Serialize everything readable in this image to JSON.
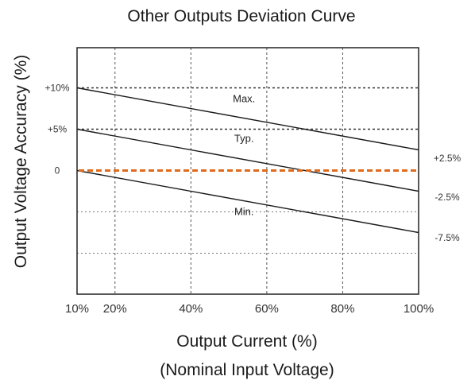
{
  "chart_data": {
    "type": "line",
    "title": "Other Outputs Deviation Curve",
    "xlabel": "Output Current (%)",
    "xlabel_sub": "(Nominal Input Voltage)",
    "ylabel": "Output Voltage Accuracy (%)",
    "x_ticks": [
      "10%",
      "20%",
      "40%",
      "60%",
      "80%",
      "100%"
    ],
    "x_tick_values": [
      10,
      20,
      40,
      60,
      80,
      100
    ],
    "y_ticks_left": [
      "+10%",
      "+5%",
      "0"
    ],
    "y_tick_values_left": [
      10,
      5,
      0
    ],
    "y_ticks_right": [
      "+2.5%",
      "-2.5%",
      "-7.5%"
    ],
    "y_tick_values_right": [
      2.5,
      -2.5,
      -7.5
    ],
    "xlim": [
      10,
      100
    ],
    "ylim": [
      -15,
      15
    ],
    "grid": true,
    "series": [
      {
        "name": "Max.",
        "x": [
          10,
          100
        ],
        "y": [
          10,
          2.5
        ]
      },
      {
        "name": "Typ.",
        "x": [
          10,
          100
        ],
        "y": [
          5,
          -2.5
        ]
      },
      {
        "name": "Min.",
        "x": [
          10,
          100
        ],
        "y": [
          0,
          -7.5
        ]
      }
    ],
    "reference_line": {
      "y": 0,
      "color": "#e06a1b"
    },
    "colors": {
      "series": "#1a1a1a",
      "reference": "#e06a1b",
      "grid": "#555555"
    }
  }
}
